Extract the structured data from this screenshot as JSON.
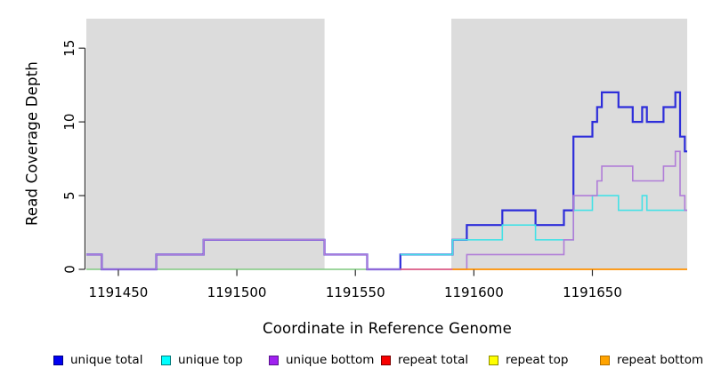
{
  "chart_data": {
    "type": "line",
    "step": true,
    "title": "",
    "xlabel": "Coordinate in Reference Genome",
    "ylabel": "Read Coverage Depth",
    "xlim": [
      1191436.5,
      1191690
    ],
    "ylim": [
      0,
      17
    ],
    "x_ticks": [
      1191450,
      1191500,
      1191550,
      1191600,
      1191650
    ],
    "y_ticks": [
      0,
      5,
      10,
      15
    ],
    "grid": false,
    "legend_position": "bottom",
    "shade_color": "#dcdcdc",
    "shaded_regions": [
      [
        1191436.5,
        1191537
      ],
      [
        1191590.5,
        1191690
      ]
    ],
    "series": [
      {
        "name": "unique total",
        "color": "#0000f2",
        "breakpoints": [
          [
            1191436.5,
            1
          ],
          [
            1191443,
            0
          ],
          [
            1191466,
            1
          ],
          [
            1191486,
            2
          ],
          [
            1191537,
            1
          ],
          [
            1191555,
            0
          ],
          [
            1191569,
            1
          ],
          [
            1191591,
            2
          ],
          [
            1191597,
            3
          ],
          [
            1191612,
            4
          ],
          [
            1191626,
            3
          ],
          [
            1191638,
            4
          ],
          [
            1191642,
            9
          ],
          [
            1191650,
            10
          ],
          [
            1191652,
            11
          ],
          [
            1191654,
            12
          ],
          [
            1191661,
            11
          ],
          [
            1191667,
            10
          ],
          [
            1191671,
            11
          ],
          [
            1191673,
            10
          ],
          [
            1191680,
            11
          ],
          [
            1191685,
            12
          ],
          [
            1191687,
            9
          ],
          [
            1191689,
            8
          ],
          [
            1191690,
            8
          ]
        ]
      },
      {
        "name": "unique top",
        "color": "#00ffff",
        "breakpoints": [
          [
            1191569,
            1
          ],
          [
            1191591,
            2
          ],
          [
            1191612,
            3
          ],
          [
            1191626,
            2
          ],
          [
            1191642,
            4
          ],
          [
            1191650,
            5
          ],
          [
            1191661,
            4
          ],
          [
            1191671,
            5
          ],
          [
            1191673,
            4
          ],
          [
            1191690,
            4
          ]
        ]
      },
      {
        "name": "unique bottom",
        "color": "#a020f0",
        "breakpoints": [
          [
            1191436.5,
            1
          ],
          [
            1191443,
            0
          ],
          [
            1191466,
            1
          ],
          [
            1191486,
            2
          ],
          [
            1191537,
            1
          ],
          [
            1191555,
            0
          ],
          [
            1191597,
            1
          ],
          [
            1191638,
            2
          ],
          [
            1191642,
            5
          ],
          [
            1191652,
            6
          ],
          [
            1191654,
            7
          ],
          [
            1191667,
            6
          ],
          [
            1191680,
            7
          ],
          [
            1191685,
            8
          ],
          [
            1191687,
            5
          ],
          [
            1191689,
            4
          ],
          [
            1191690,
            4
          ]
        ]
      },
      {
        "name": "repeat total",
        "color": "#f80000",
        "breakpoints": [
          [
            1191569,
            0
          ],
          [
            1191690,
            0
          ]
        ]
      },
      {
        "name": "repeat top",
        "color": "#ffff00",
        "breakpoints": [
          [
            1191436.5,
            0
          ],
          [
            1191569,
            0
          ]
        ]
      },
      {
        "name": "repeat bottom",
        "color": "#ffa300",
        "breakpoints": [
          [
            1191591,
            0
          ],
          [
            1191690,
            0
          ]
        ]
      }
    ],
    "render_lines": [
      {
        "id": "baseline-left-green",
        "color": "#7fc87f",
        "width": 1.5,
        "points": [
          [
            1191436.5,
            0
          ],
          [
            1191569,
            0
          ]
        ]
      },
      {
        "id": "unique-total-line",
        "color": "#2d2dda",
        "width": 2.2,
        "points": [
          [
            1191436.5,
            1
          ],
          [
            1191443,
            0
          ],
          [
            1191466,
            1
          ],
          [
            1191486,
            2
          ],
          [
            1191537,
            1
          ],
          [
            1191555,
            0
          ],
          [
            1191569,
            1
          ],
          [
            1191591,
            2
          ],
          [
            1191597,
            3
          ],
          [
            1191612,
            4
          ],
          [
            1191626,
            3
          ],
          [
            1191638,
            4
          ],
          [
            1191642,
            9
          ],
          [
            1191650,
            10
          ],
          [
            1191652,
            11
          ],
          [
            1191654,
            12
          ],
          [
            1191661,
            11
          ],
          [
            1191667,
            10
          ],
          [
            1191671,
            11
          ],
          [
            1191673,
            10
          ],
          [
            1191680,
            11
          ],
          [
            1191685,
            12
          ],
          [
            1191687,
            9
          ],
          [
            1191689,
            8
          ],
          [
            1191690,
            8
          ]
        ]
      },
      {
        "id": "unique-top-line",
        "color": "#45e1e6",
        "width": 1.6,
        "points": [
          [
            1191569,
            1
          ],
          [
            1191591,
            2
          ],
          [
            1191612,
            3
          ],
          [
            1191626,
            2
          ],
          [
            1191642,
            4
          ],
          [
            1191650,
            5
          ],
          [
            1191661,
            4
          ],
          [
            1191671,
            5
          ],
          [
            1191673,
            4
          ],
          [
            1191690,
            4
          ]
        ]
      },
      {
        "id": "unique-bottom-line",
        "color": "#b07cd8",
        "width": 1.6,
        "points": [
          [
            1191436.5,
            1
          ],
          [
            1191443,
            0
          ],
          [
            1191466,
            1
          ],
          [
            1191486,
            2
          ],
          [
            1191537,
            1
          ],
          [
            1191555,
            0
          ],
          [
            1191597,
            1
          ],
          [
            1191638,
            2
          ],
          [
            1191642,
            5
          ],
          [
            1191652,
            6
          ],
          [
            1191654,
            7
          ],
          [
            1191667,
            6
          ],
          [
            1191680,
            7
          ],
          [
            1191685,
            8
          ],
          [
            1191687,
            5
          ],
          [
            1191689,
            4
          ],
          [
            1191690,
            4
          ]
        ]
      },
      {
        "id": "baseline-mid-red",
        "color": "#e25578",
        "width": 1.6,
        "points": [
          [
            1191569,
            0
          ],
          [
            1191591,
            0
          ]
        ]
      },
      {
        "id": "baseline-right-orange",
        "color": "#ff9100",
        "width": 1.8,
        "points": [
          [
            1191591,
            0
          ],
          [
            1191690,
            0
          ]
        ]
      }
    ]
  },
  "legend": {
    "items": [
      {
        "label": "unique total",
        "fill": "#0000f2",
        "border": "#000082"
      },
      {
        "label": "unique top",
        "fill": "#00ffff",
        "border": "#007d7d"
      },
      {
        "label": "unique bottom",
        "fill": "#a020f0",
        "border": "#58148c"
      },
      {
        "label": "repeat total",
        "fill": "#f80000",
        "border": "#7d0000"
      },
      {
        "label": "repeat top",
        "fill": "#ffff00",
        "border": "#8c8c00"
      },
      {
        "label": "repeat bottom",
        "fill": "#ffa300",
        "border": "#b36f00"
      }
    ]
  },
  "axis_text": {
    "tick_color": "#000000",
    "axis_line_color": "#2b2b2b"
  }
}
